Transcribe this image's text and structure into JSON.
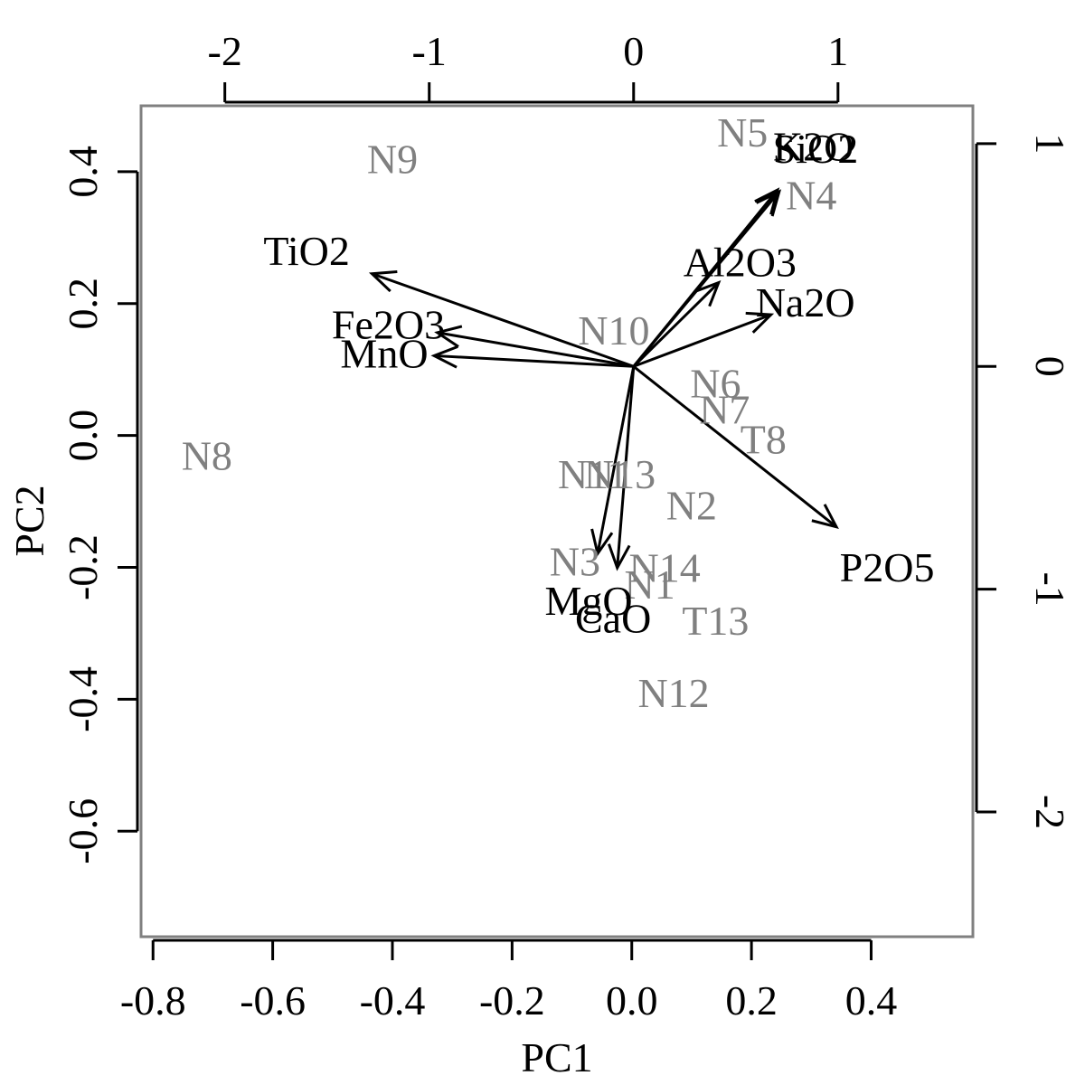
{
  "chart_data": {
    "type": "scatter",
    "title": "",
    "xlabel": "PC1",
    "ylabel": "PC2",
    "xlim": [
      -0.82,
      0.57
    ],
    "ylim": [
      -0.76,
      0.5
    ],
    "xticks": [
      "-0.8",
      "-0.6",
      "-0.4",
      "-0.2",
      "0.0",
      "0.2",
      "0.4"
    ],
    "yticks": [
      "-0.6",
      "-0.4",
      "-0.2",
      "0.0",
      "0.2",
      "0.4"
    ],
    "secondary_xlim": [
      -2.41,
      1.66
    ],
    "secondary_ylim": [
      -2.56,
      1.17
    ],
    "secondary_xticks": [
      "-2",
      "-1",
      "0",
      "1"
    ],
    "secondary_yticks": [
      "-2",
      "-1",
      "0",
      "1"
    ],
    "observations": {
      "color": "#808080",
      "points": [
        {
          "label": "N9",
          "x": -0.4,
          "y": 0.42
        },
        {
          "label": "N5",
          "x": 0.185,
          "y": 0.46
        },
        {
          "label": "N4",
          "x": 0.3,
          "y": 0.365
        },
        {
          "label": "N10",
          "x": -0.03,
          "y": 0.16
        },
        {
          "label": "N6",
          "x": 0.14,
          "y": 0.08
        },
        {
          "label": "N7",
          "x": 0.155,
          "y": 0.04
        },
        {
          "label": "T8",
          "x": 0.22,
          "y": -0.005
        },
        {
          "label": "N8",
          "x": -0.71,
          "y": -0.03
        },
        {
          "label": "N11",
          "x": -0.065,
          "y": -0.058
        },
        {
          "label": "N13",
          "x": -0.02,
          "y": -0.058
        },
        {
          "label": "N2",
          "x": 0.1,
          "y": -0.105
        },
        {
          "label": "N3",
          "x": -0.095,
          "y": -0.19
        },
        {
          "label": "N14",
          "x": 0.055,
          "y": -0.2
        },
        {
          "label": "N1",
          "x": 0.03,
          "y": -0.225
        },
        {
          "label": "T13",
          "x": 0.14,
          "y": -0.28
        },
        {
          "label": "N12",
          "x": 0.07,
          "y": -0.39
        }
      ]
    },
    "variables": {
      "color": "#000000",
      "arrows": [
        {
          "label": "K2O",
          "x": 0.88,
          "y": 0.99
        },
        {
          "label": "SiO2",
          "x": 0.89,
          "y": 0.98
        },
        {
          "label": "Al2O3",
          "x": 0.52,
          "y": 0.47
        },
        {
          "label": "Na2O",
          "x": 0.84,
          "y": 0.29
        },
        {
          "label": "TiO2",
          "x": -1.6,
          "y": 0.52
        },
        {
          "label": "Fe2O3",
          "x": -1.2,
          "y": 0.19
        },
        {
          "label": "MnO",
          "x": -1.22,
          "y": 0.06
        },
        {
          "label": "P2O5",
          "x": 1.24,
          "y": -0.9
        },
        {
          "label": "MgO",
          "x": -0.22,
          "y": -1.05
        },
        {
          "label": "CaO",
          "x": -0.1,
          "y": -1.13
        }
      ]
    }
  }
}
